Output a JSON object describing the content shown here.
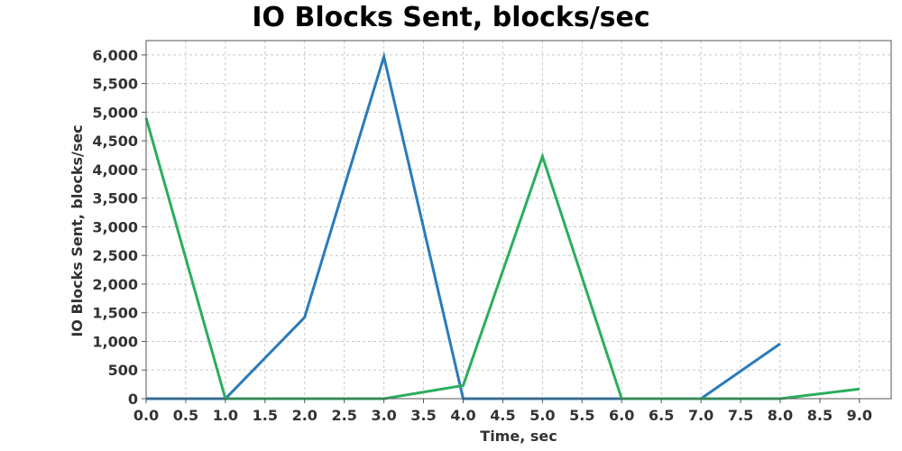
{
  "chart_data": {
    "type": "line",
    "title": "IO Blocks Sent, blocks/sec",
    "xlabel": "Time, sec",
    "ylabel": "IO Blocks Sent, blocks/sec",
    "xlim": [
      0,
      9.4
    ],
    "ylim": [
      0,
      6250
    ],
    "xticks": [
      0.0,
      0.5,
      1.0,
      1.5,
      2.0,
      2.5,
      3.0,
      3.5,
      4.0,
      4.5,
      5.0,
      5.5,
      6.0,
      6.5,
      7.0,
      7.5,
      8.0,
      8.5,
      9.0
    ],
    "xtick_labels": [
      "0.0",
      "0.5",
      "1.0",
      "1.5",
      "2.0",
      "2.5",
      "3.0",
      "3.5",
      "4.0",
      "4.5",
      "5.0",
      "5.5",
      "6.0",
      "6.5",
      "7.0",
      "7.5",
      "8.0",
      "8.5",
      "9.0"
    ],
    "yticks": [
      0,
      500,
      1000,
      1500,
      2000,
      2500,
      3000,
      3500,
      4000,
      4500,
      5000,
      5500,
      6000
    ],
    "ytick_labels": [
      "0",
      "500",
      "1,000",
      "1,500",
      "2,000",
      "2,500",
      "3,000",
      "3,500",
      "4,000",
      "4,500",
      "5,000",
      "5,500",
      "6,000"
    ],
    "grid": true,
    "legend": "none",
    "series": [
      {
        "color": "#2b7bb9",
        "x": [
          0,
          1,
          2,
          3,
          4,
          5,
          6,
          7,
          8
        ],
        "y": [
          0,
          0,
          1420,
          5970,
          0,
          0,
          0,
          0,
          960
        ]
      },
      {
        "color": "#2aae5e",
        "x": [
          0,
          1,
          2,
          3,
          4,
          5,
          6,
          7,
          8,
          9
        ],
        "y": [
          4900,
          0,
          0,
          0,
          230,
          4230,
          0,
          0,
          0,
          170
        ]
      }
    ]
  },
  "colors": {
    "plot_border": "#555555",
    "grid": "#c8c8c8",
    "background": "#ffffff"
  }
}
